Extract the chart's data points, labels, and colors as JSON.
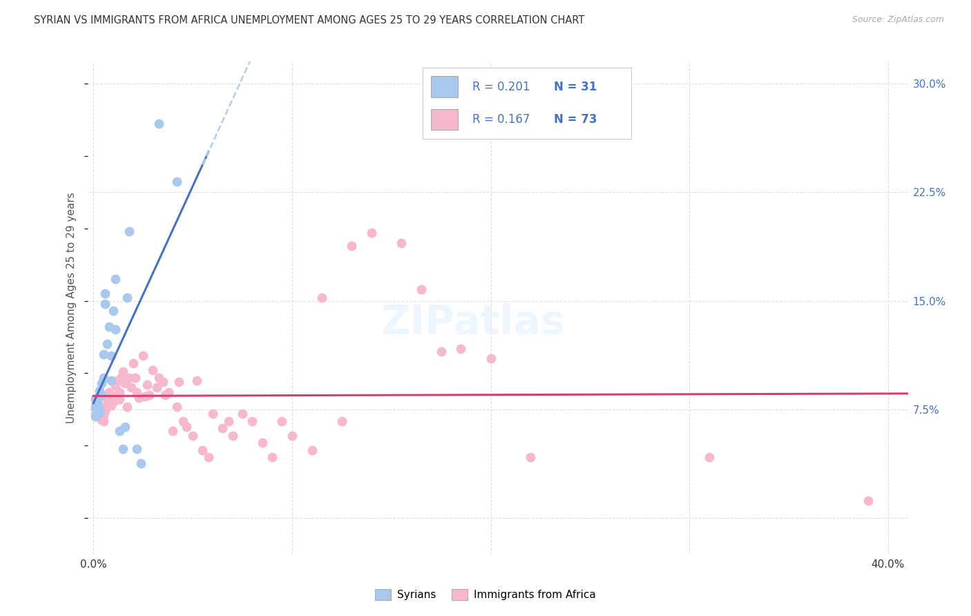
{
  "title": "SYRIAN VS IMMIGRANTS FROM AFRICA UNEMPLOYMENT AMONG AGES 25 TO 29 YEARS CORRELATION CHART",
  "source": "Source: ZipAtlas.com",
  "ylabel": "Unemployment Among Ages 25 to 29 years",
  "xlim": [
    -0.003,
    0.41
  ],
  "ylim": [
    -0.025,
    0.315
  ],
  "background_color": "#ffffff",
  "grid_color": "#dedede",
  "scatter_color1": "#a8c8ee",
  "scatter_color2": "#f8b8cc",
  "line_color1": "#4472c4",
  "line_color2": "#d44070",
  "line_dash_color": "#b0ccee",
  "legend_color1": "#a8c8ee",
  "legend_color2": "#f8b8cc",
  "ytick_vals": [
    0.0,
    0.075,
    0.15,
    0.225,
    0.3
  ],
  "ytick_labels": [
    "",
    "7.5%",
    "15.0%",
    "22.5%",
    "30.0%"
  ],
  "xtick_vals": [
    0.0,
    0.1,
    0.2,
    0.3,
    0.4
  ],
  "xtick_labels": [
    "0.0%",
    "",
    "",
    "",
    "40.0%"
  ],
  "R1": "0.201",
  "N1": "31",
  "R2": "0.167",
  "N2": "73",
  "legend1_label": "Syrians",
  "legend2_label": "Immigrants from Africa",
  "syrians_x": [
    0.001,
    0.001,
    0.001,
    0.002,
    0.002,
    0.002,
    0.003,
    0.003,
    0.003,
    0.004,
    0.004,
    0.005,
    0.005,
    0.006,
    0.006,
    0.007,
    0.008,
    0.009,
    0.009,
    0.01,
    0.011,
    0.011,
    0.013,
    0.015,
    0.016,
    0.017,
    0.018,
    0.022,
    0.024,
    0.033,
    0.042
  ],
  "syrians_y": [
    0.082,
    0.076,
    0.07,
    0.083,
    0.079,
    0.072,
    0.088,
    0.075,
    0.073,
    0.093,
    0.085,
    0.113,
    0.097,
    0.155,
    0.148,
    0.12,
    0.132,
    0.112,
    0.095,
    0.143,
    0.165,
    0.13,
    0.06,
    0.048,
    0.063,
    0.152,
    0.198,
    0.048,
    0.038,
    0.272,
    0.232
  ],
  "africa_x": [
    0.001,
    0.001,
    0.002,
    0.002,
    0.003,
    0.003,
    0.004,
    0.004,
    0.005,
    0.005,
    0.006,
    0.006,
    0.007,
    0.008,
    0.009,
    0.01,
    0.01,
    0.011,
    0.012,
    0.013,
    0.013,
    0.014,
    0.015,
    0.016,
    0.017,
    0.018,
    0.019,
    0.02,
    0.021,
    0.022,
    0.023,
    0.025,
    0.026,
    0.027,
    0.028,
    0.03,
    0.032,
    0.033,
    0.035,
    0.036,
    0.038,
    0.04,
    0.042,
    0.043,
    0.045,
    0.047,
    0.05,
    0.052,
    0.055,
    0.058,
    0.06,
    0.065,
    0.068,
    0.07,
    0.075,
    0.08,
    0.085,
    0.09,
    0.095,
    0.1,
    0.11,
    0.115,
    0.125,
    0.13,
    0.14,
    0.155,
    0.165,
    0.175,
    0.185,
    0.2,
    0.22,
    0.31,
    0.39
  ],
  "africa_y": [
    0.078,
    0.072,
    0.08,
    0.074,
    0.084,
    0.071,
    0.077,
    0.068,
    0.071,
    0.067,
    0.077,
    0.074,
    0.082,
    0.087,
    0.078,
    0.084,
    0.08,
    0.091,
    0.095,
    0.087,
    0.082,
    0.097,
    0.101,
    0.093,
    0.077,
    0.097,
    0.09,
    0.107,
    0.097,
    0.087,
    0.083,
    0.112,
    0.084,
    0.092,
    0.085,
    0.102,
    0.09,
    0.097,
    0.094,
    0.085,
    0.087,
    0.06,
    0.077,
    0.094,
    0.067,
    0.063,
    0.057,
    0.095,
    0.047,
    0.042,
    0.072,
    0.062,
    0.067,
    0.057,
    0.072,
    0.067,
    0.052,
    0.042,
    0.067,
    0.057,
    0.047,
    0.152,
    0.067,
    0.188,
    0.197,
    0.19,
    0.158,
    0.115,
    0.117,
    0.11,
    0.042,
    0.042,
    0.012
  ]
}
